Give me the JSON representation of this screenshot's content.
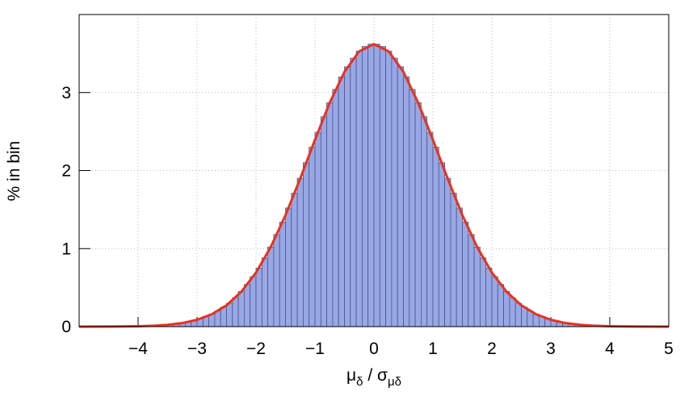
{
  "chart_data": {
    "type": "histogram",
    "ylabel": "% in bin",
    "x_label_parts": [
      "μ",
      "δ",
      " / σ",
      "μδ"
    ],
    "bins": [
      -3.5,
      -3.4,
      -3.3,
      -3.2,
      -3.1,
      -3.0,
      -2.9,
      -2.8,
      -2.7,
      -2.6,
      -2.5,
      -2.4,
      -2.3,
      -2.2,
      -2.1,
      -2.0,
      -1.9,
      -1.8,
      -1.7,
      -1.6,
      -1.5,
      -1.4,
      -1.3,
      -1.2,
      -1.1,
      -1.0,
      -0.9,
      -0.8,
      -0.7,
      -0.6,
      -0.5,
      -0.4,
      -0.3,
      -0.2,
      -0.1,
      0,
      0.1,
      0.2,
      0.3,
      0.4,
      0.5,
      0.6,
      0.7,
      0.8,
      0.9,
      1.0,
      1.1,
      1.2,
      1.3,
      1.4,
      1.5,
      1.6,
      1.7,
      1.8,
      1.9,
      2.0,
      2.1,
      2.2,
      2.3,
      2.4,
      2.5,
      2.6,
      2.7,
      2.8,
      2.9,
      3.0,
      3.1,
      3.2,
      3.3,
      3.4,
      3.5
    ],
    "values": [
      0.03,
      0.04,
      0.05,
      0.06,
      0.08,
      0.1,
      0.13,
      0.16,
      0.2,
      0.25,
      0.3,
      0.37,
      0.45,
      0.54,
      0.64,
      0.75,
      0.88,
      1.02,
      1.18,
      1.34,
      1.52,
      1.71,
      1.9,
      2.1,
      2.3,
      2.49,
      2.69,
      2.87,
      3.04,
      3.2,
      3.33,
      3.44,
      3.53,
      3.59,
      3.62,
      3.62,
      3.59,
      3.53,
      3.44,
      3.33,
      3.2,
      3.04,
      2.87,
      2.69,
      2.49,
      2.3,
      2.1,
      1.9,
      1.71,
      1.52,
      1.34,
      1.18,
      1.02,
      0.88,
      0.75,
      0.64,
      0.54,
      0.45,
      0.37,
      0.3,
      0.25,
      0.2,
      0.16,
      0.13,
      0.1,
      0.08,
      0.06,
      0.05,
      0.04,
      0.03
    ],
    "color": "#98a8e6",
    "fit": {
      "color": "#e8321e",
      "x": [
        -5,
        -4.5,
        -4,
        -3.75,
        -3.5,
        -3.25,
        -3,
        -2.75,
        -2.5,
        -2.25,
        -2,
        -1.75,
        -1.5,
        -1.25,
        -1,
        -0.75,
        -0.5,
        -0.25,
        0,
        0.25,
        0.5,
        0.75,
        1,
        1.25,
        1.5,
        1.75,
        2,
        2.25,
        2.5,
        2.75,
        3,
        3.25,
        3.5,
        3.75,
        4,
        4.5,
        5
      ],
      "values": [
        0,
        0.001,
        0.005,
        0.011,
        0.023,
        0.046,
        0.088,
        0.159,
        0.274,
        0.447,
        0.693,
        1.021,
        1.428,
        1.898,
        2.395,
        2.869,
        3.265,
        3.528,
        3.62,
        3.528,
        3.265,
        2.869,
        2.395,
        1.898,
        1.428,
        1.021,
        0.693,
        0.447,
        0.274,
        0.159,
        0.088,
        0.046,
        0.023,
        0.011,
        0.005,
        0.001,
        0
      ]
    },
    "xlim": [
      -5,
      5
    ],
    "xticks": [
      {
        "value": -4,
        "label": "−4"
      },
      {
        "value": -3,
        "label": "−3"
      },
      {
        "value": -2,
        "label": "−2"
      },
      {
        "value": -1,
        "label": "−1"
      },
      0,
      1,
      2,
      3,
      4,
      5
    ],
    "ylim": [
      0,
      4
    ],
    "yticks": [
      0,
      1,
      2,
      3
    ],
    "grid": true
  }
}
